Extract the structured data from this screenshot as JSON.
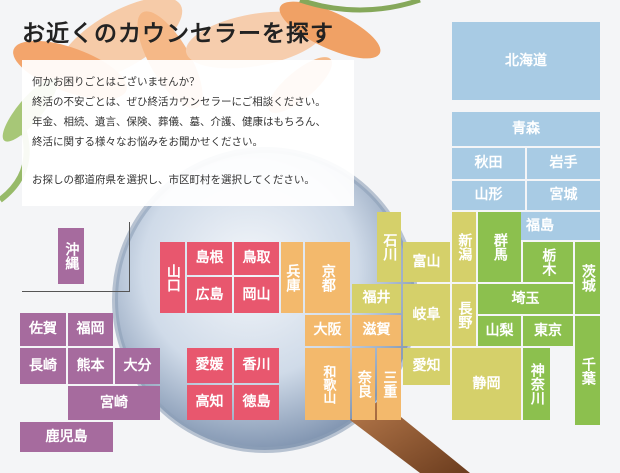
{
  "title": "お近くのカウンセラーを探す",
  "intro": {
    "lines": [
      "何かお困りごとはございませんか？",
      "終活の不安ごとは、ぜひ終活カウンセラーにご相談ください。",
      "年金、相続、遺言、保険、葬儀、墓、介護、健康はもちろん、",
      "終活に関する様々なお悩みをお聞かせください。"
    ],
    "instruction": "お探しの都道府県を選択し、市区町村を選択してください。"
  },
  "colors": {
    "hokkaido_tohoku": "#a8cbe4",
    "kanto": "#8cc04e",
    "chubu": "#d5d06a",
    "kinki": "#f3b96c",
    "chugoku": "#e8576e",
    "shikoku": "#e8576e",
    "kyushu_okinawa": "#a66b9e"
  },
  "prefectures": [
    {
      "id": "hokkaido",
      "name": "北海道",
      "region": "hokkaido_tohoku"
    },
    {
      "id": "aomori",
      "name": "青森",
      "region": "hokkaido_tohoku"
    },
    {
      "id": "akita",
      "name": "秋田",
      "region": "hokkaido_tohoku"
    },
    {
      "id": "iwate",
      "name": "岩手",
      "region": "hokkaido_tohoku"
    },
    {
      "id": "yamagata",
      "name": "山形",
      "region": "hokkaido_tohoku"
    },
    {
      "id": "miyagi",
      "name": "宮城",
      "region": "hokkaido_tohoku"
    },
    {
      "id": "fukushima",
      "name": "福島",
      "region": "hokkaido_tohoku"
    },
    {
      "id": "gunma",
      "name": "群馬",
      "region": "kanto"
    },
    {
      "id": "tochigi",
      "name": "栃木",
      "region": "kanto"
    },
    {
      "id": "ibaraki",
      "name": "茨城",
      "region": "kanto"
    },
    {
      "id": "saitama",
      "name": "埼玉",
      "region": "kanto"
    },
    {
      "id": "chiba",
      "name": "千葉",
      "region": "kanto"
    },
    {
      "id": "tokyo",
      "name": "東京",
      "region": "kanto"
    },
    {
      "id": "kanagawa",
      "name": "神奈川",
      "region": "kanto"
    },
    {
      "id": "yamanashi",
      "name": "山梨",
      "region": "kanto"
    },
    {
      "id": "niigata",
      "name": "新潟",
      "region": "chubu"
    },
    {
      "id": "toyama",
      "name": "富山",
      "region": "chubu"
    },
    {
      "id": "ishikawa",
      "name": "石川",
      "region": "chubu"
    },
    {
      "id": "fukui",
      "name": "福井",
      "region": "chubu"
    },
    {
      "id": "nagano",
      "name": "長野",
      "region": "chubu"
    },
    {
      "id": "gifu",
      "name": "岐阜",
      "region": "chubu"
    },
    {
      "id": "shizuoka",
      "name": "静岡",
      "region": "chubu"
    },
    {
      "id": "aichi",
      "name": "愛知",
      "region": "chubu"
    },
    {
      "id": "mie",
      "name": "三重",
      "region": "kinki"
    },
    {
      "id": "shiga",
      "name": "滋賀",
      "region": "kinki"
    },
    {
      "id": "kyoto",
      "name": "京都",
      "region": "kinki"
    },
    {
      "id": "osaka",
      "name": "大阪",
      "region": "kinki"
    },
    {
      "id": "hyogo",
      "name": "兵庫",
      "region": "kinki"
    },
    {
      "id": "nara",
      "name": "奈良",
      "region": "kinki"
    },
    {
      "id": "wakayama",
      "name": "和歌山",
      "region": "kinki"
    },
    {
      "id": "tottori",
      "name": "鳥取",
      "region": "chugoku"
    },
    {
      "id": "shimane",
      "name": "島根",
      "region": "chugoku"
    },
    {
      "id": "okayama",
      "name": "岡山",
      "region": "chugoku"
    },
    {
      "id": "hiroshima",
      "name": "広島",
      "region": "chugoku"
    },
    {
      "id": "yamaguchi",
      "name": "山口",
      "region": "chugoku"
    },
    {
      "id": "kagawa",
      "name": "香川",
      "region": "shikoku"
    },
    {
      "id": "ehime",
      "name": "愛媛",
      "region": "shikoku"
    },
    {
      "id": "tokushima",
      "name": "徳島",
      "region": "shikoku"
    },
    {
      "id": "kochi",
      "name": "高知",
      "region": "shikoku"
    },
    {
      "id": "fukuoka",
      "name": "福岡",
      "region": "kyushu_okinawa"
    },
    {
      "id": "saga",
      "name": "佐賀",
      "region": "kyushu_okinawa"
    },
    {
      "id": "nagasaki",
      "name": "長崎",
      "region": "kyushu_okinawa"
    },
    {
      "id": "kumamoto",
      "name": "熊本",
      "region": "kyushu_okinawa"
    },
    {
      "id": "oita",
      "name": "大分",
      "region": "kyushu_okinawa"
    },
    {
      "id": "miyazaki",
      "name": "宮崎",
      "region": "kyushu_okinawa"
    },
    {
      "id": "kagoshima",
      "name": "鹿児島",
      "region": "kyushu_okinawa"
    },
    {
      "id": "okinawa",
      "name": "沖縄",
      "region": "kyushu_okinawa"
    }
  ]
}
